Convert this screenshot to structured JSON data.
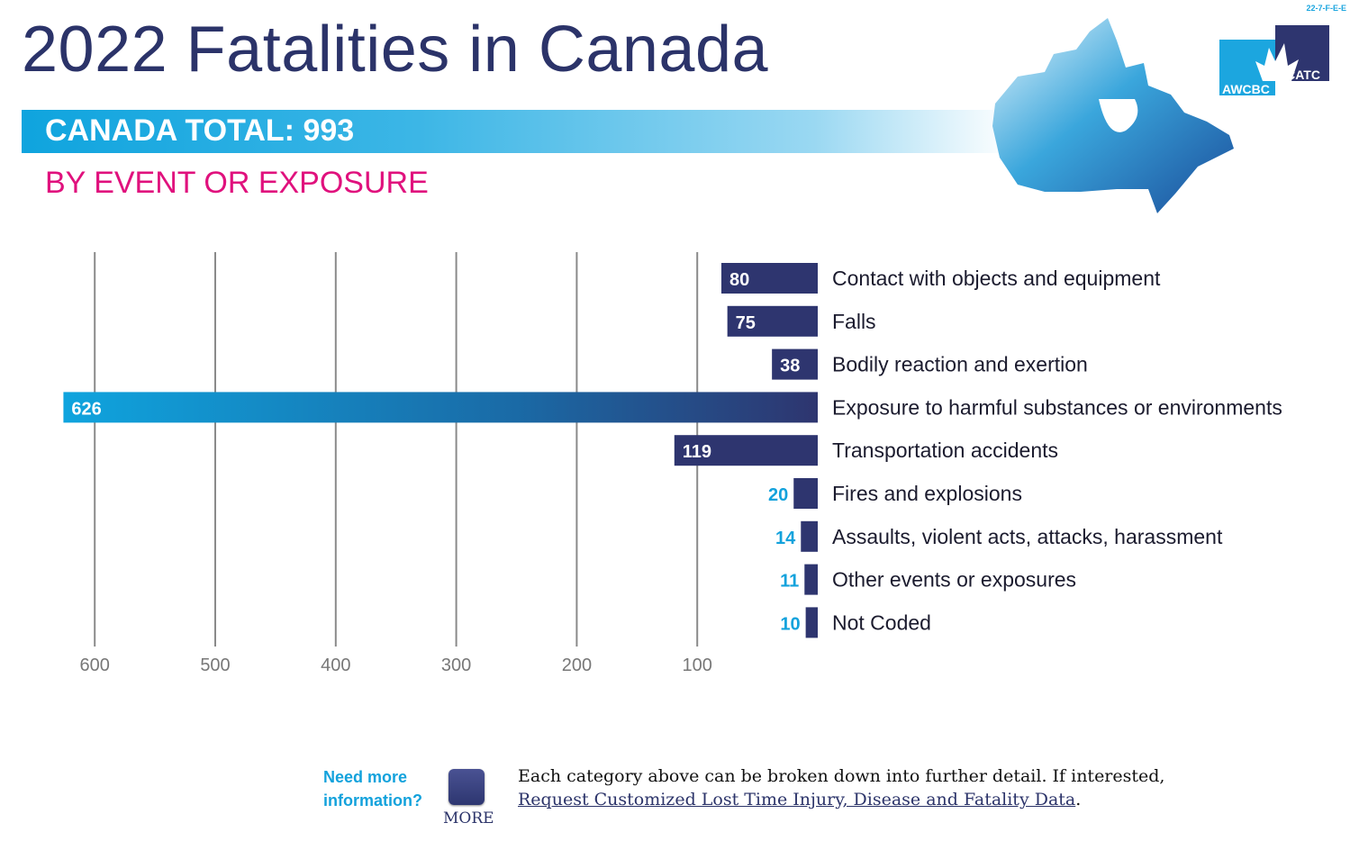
{
  "code": "22-7-F-E-E",
  "logo": {
    "left": "AWCBC",
    "right": "ACATC",
    "colors": [
      "#1ca6df",
      "#2e356f"
    ]
  },
  "footer": {
    "need_more": "Need more information?",
    "more_label": "MORE",
    "note_text": "Each category above can be broken down into further detail. If interested,",
    "link_text": "Request Customized Lost Time Injury, Disease and Fatality Data",
    "link_suffix": "."
  },
  "chart_data": {
    "type": "bar",
    "orientation": "horizontal",
    "direction": "right-to-left",
    "title": "2022 Fatalities in Canada",
    "total_label": "CANADA TOTAL: 993",
    "subtitle": "BY EVENT OR EXPOSURE",
    "categories": [
      "Contact with objects and equipment",
      "Falls",
      "Bodily reaction and exertion",
      "Exposure to harmful substances or environments",
      "Transportation accidents",
      "Fires and explosions",
      "Assaults, violent acts, attacks, harassment",
      "Other events or exposures",
      "Not Coded"
    ],
    "values": [
      80,
      75,
      38,
      626,
      119,
      20,
      14,
      11,
      10
    ],
    "xticks": [
      600,
      500,
      400,
      300,
      200,
      100
    ],
    "xlim": [
      0,
      626
    ],
    "grid": true,
    "colors": {
      "bar": "#2e356f",
      "bar_highlight": "#0fa4de",
      "label_outside": "#13a2dc",
      "grid": "#8a8a8a",
      "tick": "#777"
    }
  }
}
